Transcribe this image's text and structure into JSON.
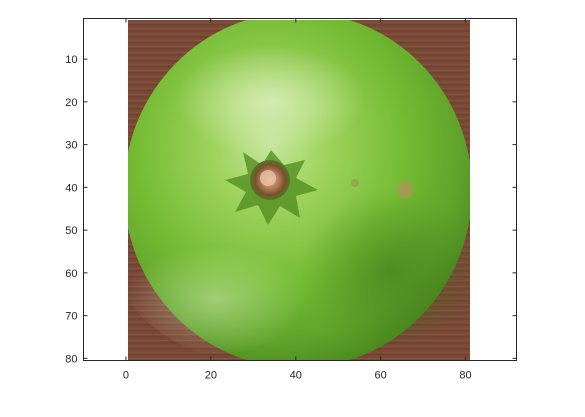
{
  "figure": {
    "content": "pixelated photo of a green lime / citrus fruit viewed from the stem end, on a wooden surface",
    "colors": {
      "background_wood": "#7a4a36",
      "fruit_dark": "#4f8f1f",
      "fruit_mid": "#7cc23a",
      "fruit_light": "#b7df86",
      "stem": "#8a5a3a",
      "axes": "#262626"
    }
  },
  "axes": {
    "x_ticks": [
      "0",
      "20",
      "40",
      "60",
      "80"
    ],
    "y_ticks": [
      "10",
      "20",
      "30",
      "40",
      "50",
      "60",
      "70",
      "80"
    ],
    "xlim": [
      -10,
      92
    ],
    "ylim": [
      0.5,
      80.5
    ],
    "image_extent_x": [
      0.5,
      80.5
    ],
    "image_extent_y": [
      0.5,
      80.5
    ],
    "y_direction": "reverse",
    "grid": false
  }
}
